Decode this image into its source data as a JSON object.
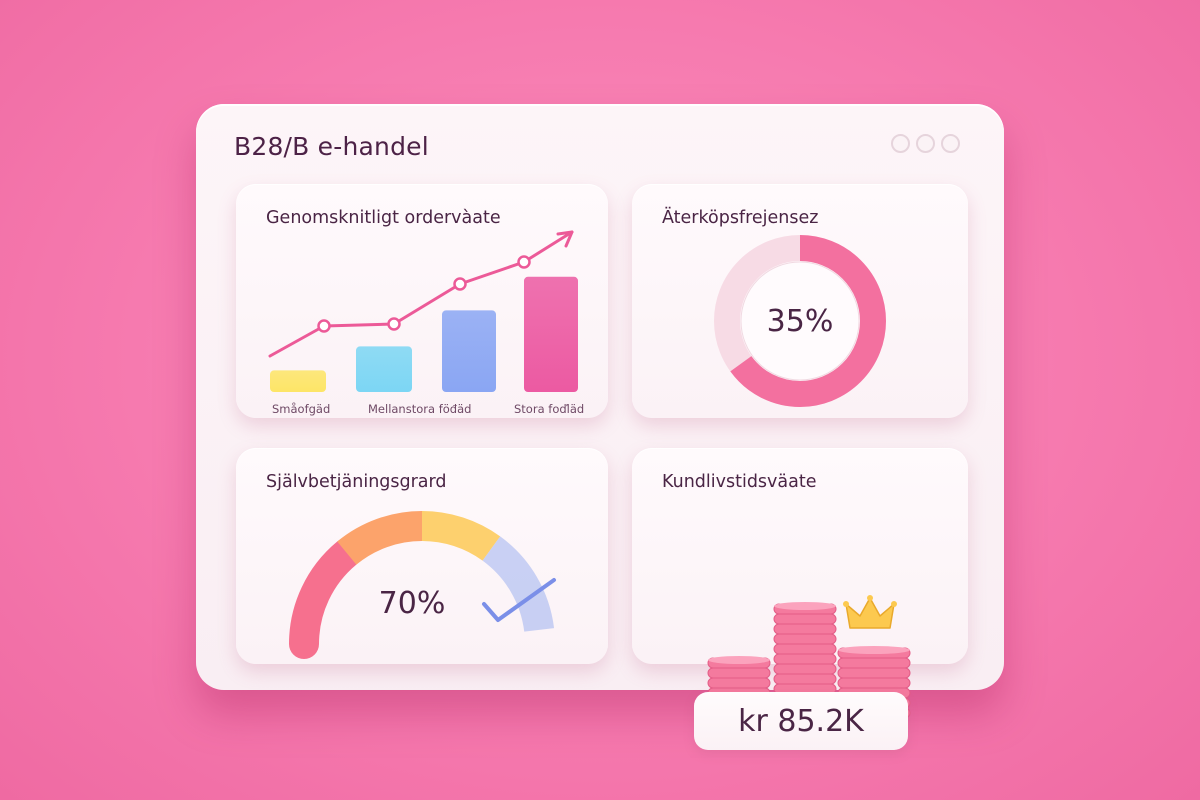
{
  "window": {
    "title": "B28/B e-handel",
    "controls": [
      "circle-icon",
      "circle-icon",
      "circle-icon"
    ]
  },
  "cards": {
    "average_order_value": {
      "title": "Genomsknitligt ordervàate",
      "chart_data": {
        "type": "bar",
        "categories": [
          "Småofgäd",
          "Mellanstora föđäd",
          "Stora foďläd"
        ],
        "values": [
          1,
          2,
          3
        ],
        "trend_line": true,
        "colors": [
          "#fde567",
          "#7cd6f4",
          "#8aa6f3",
          "#ec5aa2"
        ]
      }
    },
    "repurchase": {
      "title": "Äterköpsfrejensez",
      "value_text": "35%",
      "value": 0.35,
      "accent": "#f3709f"
    },
    "self_service": {
      "title": "Självbetjäningsgrard",
      "value_text": "70%",
      "value": 0.7,
      "icon": "checkmark-icon",
      "gauge_colors": [
        "#f6708e",
        "#fca36b",
        "#fdd06e",
        "#b7c3f2"
      ]
    },
    "clv": {
      "title": "Kundlivstidsväate",
      "value_text": "kr 85.2K",
      "icons": [
        "coin-stack-icon",
        "crown-icon"
      ],
      "accent": "#f47a9e"
    }
  }
}
